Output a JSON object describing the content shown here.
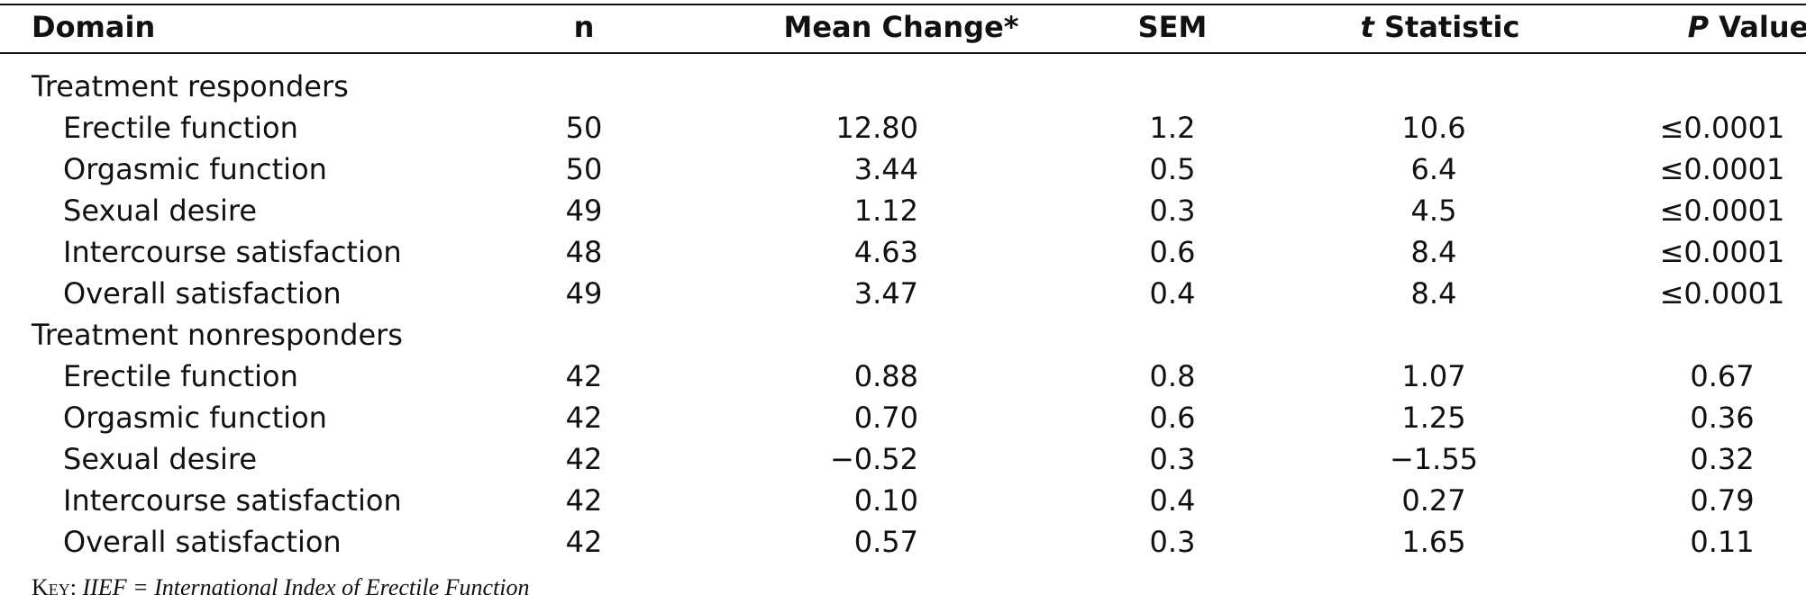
{
  "table": {
    "header": [
      [
        "Domain"
      ],
      [
        "n"
      ],
      [
        "Mean Change*"
      ],
      [
        "SEM"
      ],
      [
        "t",
        "Statistic"
      ],
      [
        "P",
        "Value"
      ]
    ],
    "sections": [
      {
        "label": "Treatment responders",
        "rows": [
          [
            "Erectile function",
            "50",
            "12.80",
            "1.2",
            "10.6",
            "≤0.0001"
          ],
          [
            "Orgasmic function",
            "50",
            "3.44",
            "0.5",
            "6.4",
            "≤0.0001"
          ],
          [
            "Sexual desire",
            "49",
            "1.12",
            "0.3",
            "4.5",
            "≤0.0001"
          ],
          [
            "Intercourse satisfaction",
            "48",
            "4.63",
            "0.6",
            "8.4",
            "≤0.0001"
          ],
          [
            "Overall satisfaction",
            "49",
            "3.47",
            "0.4",
            "8.4",
            "≤0.0001"
          ]
        ]
      },
      {
        "label": "Treatment nonresponders",
        "rows": [
          [
            "Erectile function",
            "42",
            "0.88",
            "0.8",
            "1.07",
            "0.67"
          ],
          [
            "Orgasmic function",
            "42",
            "0.70",
            "0.6",
            "1.25",
            "0.36"
          ],
          [
            "Sexual desire",
            "42",
            "−0.52",
            "0.3",
            "−1.55",
            "0.32"
          ],
          [
            "Intercourse satisfaction",
            "42",
            "0.10",
            "0.4",
            "0.27",
            "0.79"
          ],
          [
            "Overall satisfaction",
            "42",
            "0.57",
            "0.3",
            "1.65",
            "0.11"
          ]
        ]
      }
    ],
    "footnote": [
      "Key:",
      "IIEF = International Index of Erectile Function"
    ]
  }
}
